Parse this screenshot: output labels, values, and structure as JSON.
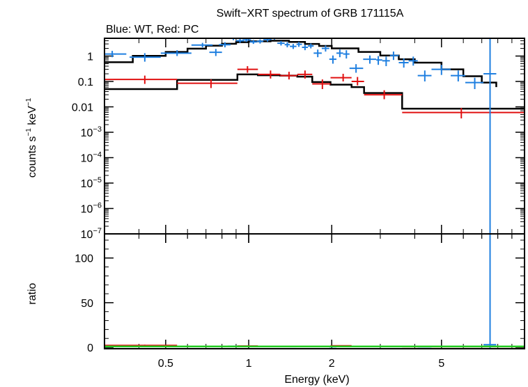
{
  "chart_data": {
    "type": "scatter",
    "title": "Swift−XRT spectrum of GRB 171115A",
    "subtitle": "Blue: WT, Red: PC",
    "xlabel": "Energy (keV)",
    "x_scale": "log",
    "xlim": [
      0.3,
      10
    ],
    "x_ticks": [
      0.5,
      1,
      2,
      5
    ],
    "x_tick_labels": [
      "0.5",
      "1",
      "2",
      "5"
    ],
    "colors": {
      "wt": "#1f7fe0",
      "pc": "#e01010",
      "model": "#000000",
      "ratio_line": "#22cc22"
    },
    "top_panel": {
      "ylabel_main": "counts s",
      "ylabel_sup1": "−1",
      "ylabel_mid": " keV",
      "ylabel_sup2": "−1",
      "y_scale": "log",
      "ylim": [
        1e-07,
        5
      ],
      "y_ticks": [
        {
          "value": 1,
          "label": "1"
        },
        {
          "value": 0.1,
          "label": "0.1"
        },
        {
          "value": 0.01,
          "label": "0.01"
        },
        {
          "value": 0.001,
          "base": "10",
          "exp": "−3"
        },
        {
          "value": 0.0001,
          "base": "10",
          "exp": "−4"
        },
        {
          "value": 1e-05,
          "base": "10",
          "exp": "−5"
        },
        {
          "value": 1e-06,
          "base": "10",
          "exp": "−6"
        },
        {
          "value": 1e-07,
          "base": "10",
          "exp": "−7"
        }
      ],
      "wt_points": [
        [
          0.32,
          0.28,
          0.36,
          1.2,
          0.9,
          1.6
        ],
        [
          0.42,
          0.37,
          0.48,
          0.9,
          0.6,
          1.3
        ],
        [
          0.55,
          0.48,
          0.62,
          1.3,
          1.0,
          1.7
        ],
        [
          0.68,
          0.62,
          0.74,
          2.7,
          2.2,
          3.3
        ],
        [
          0.76,
          0.72,
          0.8,
          1.4,
          1.0,
          1.9
        ],
        [
          0.82,
          0.78,
          0.86,
          2.8,
          2.2,
          3.5
        ],
        [
          0.88,
          0.84,
          0.92,
          5.0,
          4.2,
          5.8
        ],
        [
          0.93,
          0.9,
          0.96,
          4.0,
          3.3,
          4.8
        ],
        [
          0.98,
          0.95,
          1.02,
          4.3,
          3.6,
          5.1
        ],
        [
          1.04,
          1.01,
          1.07,
          3.6,
          3.0,
          4.3
        ],
        [
          1.1,
          1.07,
          1.13,
          3.8,
          3.1,
          4.5
        ],
        [
          1.17,
          1.13,
          1.21,
          4.5,
          3.7,
          5.4
        ],
        [
          1.24,
          1.21,
          1.27,
          5.2,
          4.4,
          6.0
        ],
        [
          1.31,
          1.27,
          1.35,
          3.2,
          2.6,
          3.9
        ],
        [
          1.38,
          1.35,
          1.41,
          2.8,
          2.2,
          3.5
        ],
        [
          1.45,
          1.41,
          1.49,
          2.4,
          1.9,
          3.0
        ],
        [
          1.52,
          1.49,
          1.56,
          2.9,
          2.3,
          3.6
        ],
        [
          1.6,
          1.56,
          1.64,
          2.2,
          1.7,
          2.8
        ],
        [
          1.68,
          1.64,
          1.72,
          2.5,
          2.0,
          3.1
        ],
        [
          1.78,
          1.72,
          1.84,
          1.3,
          0.9,
          1.8
        ],
        [
          1.9,
          1.84,
          1.96,
          2.0,
          1.5,
          2.6
        ],
        [
          2.02,
          1.96,
          2.08,
          0.75,
          0.5,
          1.05
        ],
        [
          2.14,
          2.08,
          2.2,
          1.3,
          0.9,
          1.8
        ],
        [
          2.26,
          2.2,
          2.32,
          1.2,
          0.8,
          1.7
        ],
        [
          2.45,
          2.32,
          2.6,
          0.33,
          0.22,
          0.48
        ],
        [
          2.75,
          2.6,
          2.9,
          0.75,
          0.5,
          1.05
        ],
        [
          2.95,
          2.9,
          3.05,
          0.7,
          0.45,
          1.0
        ],
        [
          3.15,
          3.05,
          3.25,
          0.65,
          0.4,
          0.95
        ],
        [
          3.35,
          3.25,
          3.5,
          1.05,
          0.7,
          1.5
        ],
        [
          3.65,
          3.5,
          3.8,
          0.55,
          0.35,
          0.8
        ],
        [
          3.95,
          3.8,
          4.1,
          0.65,
          0.42,
          0.95
        ],
        [
          4.35,
          4.1,
          4.6,
          0.17,
          0.1,
          0.27
        ],
        [
          5.0,
          4.6,
          5.4,
          0.3,
          0.18,
          0.45
        ],
        [
          5.75,
          5.4,
          6.1,
          0.17,
          0.1,
          0.27
        ],
        [
          6.6,
          6.1,
          7.1,
          0.09,
          0.05,
          0.14
        ],
        [
          7.5,
          7.1,
          7.9,
          0.2,
          1e-07,
          5
        ]
      ],
      "pc_points": [
        [
          0.42,
          0.3,
          0.55,
          0.12,
          0.08,
          0.17
        ],
        [
          0.73,
          0.55,
          0.91,
          0.085,
          0.055,
          0.12
        ],
        [
          0.99,
          0.91,
          1.08,
          0.3,
          0.22,
          0.4
        ],
        [
          1.2,
          1.08,
          1.3,
          0.19,
          0.13,
          0.27
        ],
        [
          1.4,
          1.3,
          1.5,
          0.17,
          0.12,
          0.24
        ],
        [
          1.6,
          1.5,
          1.7,
          0.19,
          0.13,
          0.27
        ],
        [
          1.85,
          1.7,
          1.98,
          0.08,
          0.05,
          0.12
        ],
        [
          2.2,
          1.98,
          2.36,
          0.14,
          0.1,
          0.2
        ],
        [
          2.48,
          2.36,
          2.62,
          0.1,
          0.07,
          0.15
        ],
        [
          3.1,
          2.62,
          3.6,
          0.03,
          0.02,
          0.045
        ],
        [
          5.9,
          3.6,
          10.0,
          0.006,
          0.0035,
          0.009
        ]
      ],
      "wt_model": [
        [
          0.3,
          0.57
        ],
        [
          0.38,
          1.02
        ],
        [
          0.5,
          1.45
        ],
        [
          0.6,
          1.95
        ],
        [
          0.7,
          2.55
        ],
        [
          0.8,
          3.05
        ],
        [
          0.9,
          3.5
        ],
        [
          1.0,
          3.8
        ],
        [
          1.2,
          4.0
        ],
        [
          1.4,
          3.6
        ],
        [
          1.6,
          3.0
        ],
        [
          1.8,
          2.5
        ],
        [
          2.0,
          2.0
        ],
        [
          2.5,
          1.45
        ],
        [
          3.0,
          1.05
        ],
        [
          3.5,
          0.75
        ],
        [
          4.0,
          0.55
        ],
        [
          5.0,
          0.3
        ],
        [
          6.0,
          0.16
        ],
        [
          7.0,
          0.09
        ],
        [
          7.9,
          0.06
        ]
      ],
      "pc_model": [
        [
          0.3,
          0.05
        ],
        [
          0.55,
          0.05
        ],
        [
          0.55,
          0.115
        ],
        [
          0.91,
          0.115
        ],
        [
          0.91,
          0.19
        ],
        [
          1.08,
          0.19
        ],
        [
          1.08,
          0.175
        ],
        [
          1.3,
          0.175
        ],
        [
          1.3,
          0.17
        ],
        [
          1.5,
          0.17
        ],
        [
          1.5,
          0.155
        ],
        [
          1.7,
          0.155
        ],
        [
          1.7,
          0.095
        ],
        [
          1.98,
          0.095
        ],
        [
          1.98,
          0.075
        ],
        [
          2.36,
          0.075
        ],
        [
          2.36,
          0.06
        ],
        [
          2.62,
          0.06
        ],
        [
          2.62,
          0.035
        ],
        [
          3.6,
          0.035
        ],
        [
          3.6,
          0.0085
        ],
        [
          10.0,
          0.0085
        ]
      ]
    },
    "bottom_panel": {
      "ylabel": "ratio",
      "ylim": [
        -1.5,
        127
      ],
      "y_ticks": [
        0,
        50,
        100
      ],
      "y_tick_labels": [
        "0",
        "50",
        "100"
      ],
      "reference_line": 1,
      "wt_ratio": [
        [
          0.32,
          0.28,
          0.36,
          1.0,
          0.6,
          1.5
        ],
        [
          0.55,
          0.48,
          0.62,
          1.1,
          0.7,
          1.6
        ],
        [
          0.88,
          0.84,
          0.92,
          1.3,
          0.8,
          1.8
        ],
        [
          1.1,
          1.07,
          1.13,
          0.9,
          0.6,
          1.3
        ],
        [
          1.45,
          1.41,
          1.49,
          0.8,
          0.5,
          1.2
        ],
        [
          2.02,
          1.96,
          2.08,
          0.6,
          0.3,
          0.9
        ],
        [
          2.95,
          2.9,
          3.05,
          0.9,
          0.5,
          1.4
        ],
        [
          4.35,
          4.1,
          4.6,
          0.6,
          0.3,
          1.0
        ],
        [
          5.75,
          5.4,
          6.1,
          0.9,
          0.4,
          1.5
        ],
        [
          7.5,
          7.1,
          7.9,
          3.0,
          -1.5,
          127
        ]
      ],
      "pc_ratio": [
        [
          0.42,
          0.3,
          0.55,
          2.2,
          1.4,
          3.0
        ],
        [
          0.73,
          0.55,
          0.91,
          1.0,
          0.6,
          1.4
        ],
        [
          0.99,
          0.91,
          1.08,
          1.5,
          1.0,
          2.0
        ],
        [
          1.4,
          1.3,
          1.5,
          1.0,
          0.6,
          1.4
        ],
        [
          2.2,
          1.98,
          2.36,
          1.8,
          1.2,
          2.4
        ],
        [
          3.1,
          2.62,
          3.6,
          0.9,
          0.5,
          1.3
        ],
        [
          5.9,
          3.6,
          10.0,
          0.7,
          0.3,
          1.1
        ]
      ]
    }
  }
}
